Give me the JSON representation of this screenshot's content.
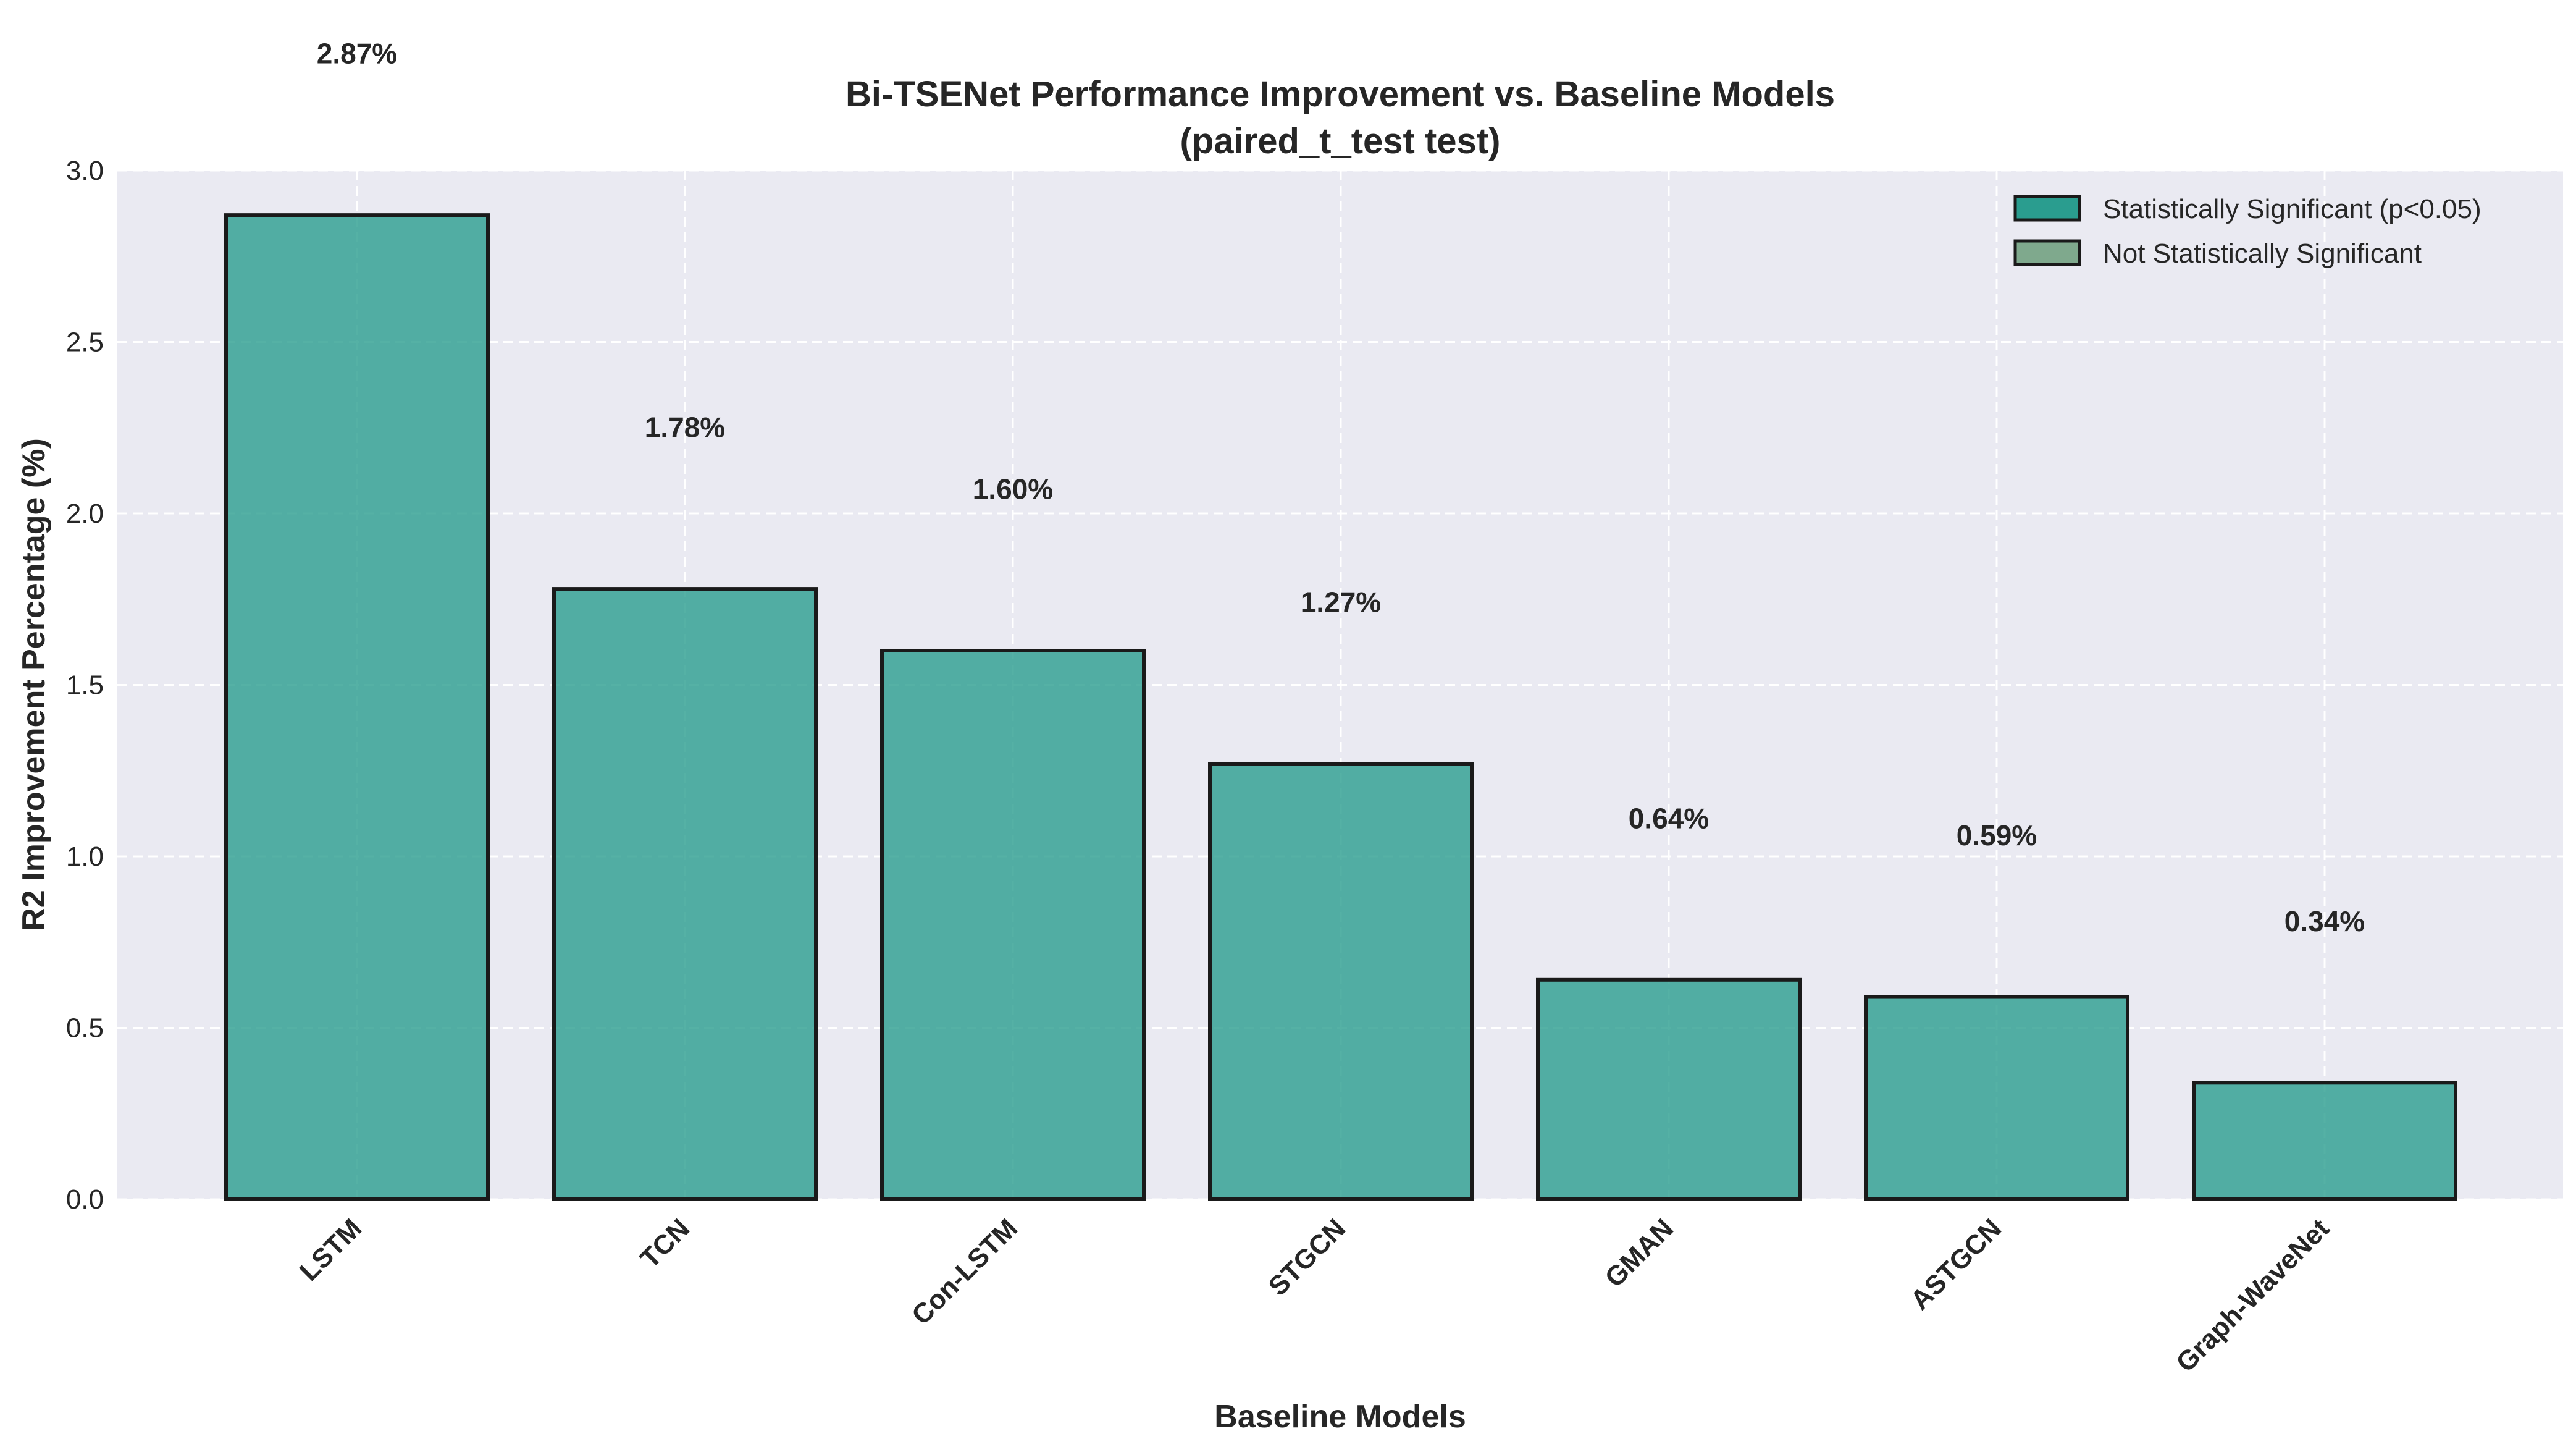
{
  "chart_data": {
    "type": "bar",
    "title": "Bi-TSENet Performance Improvement vs. Baseline Models",
    "subtitle": "(paired_t_test test)",
    "xlabel": "Baseline Models",
    "ylabel": "R2 Improvement Percentage (%)",
    "categories": [
      "LSTM",
      "TCN",
      "Con-LSTM",
      "STGCN",
      "GMAN",
      "ASTGCN",
      "Graph-WaveNet"
    ],
    "values": [
      2.87,
      1.78,
      1.6,
      1.27,
      0.64,
      0.59,
      0.34
    ],
    "value_labels": [
      "2.87%",
      "1.78%",
      "1.60%",
      "1.27%",
      "0.64%",
      "0.59%",
      "0.34%"
    ],
    "significant": [
      true,
      true,
      true,
      true,
      true,
      true,
      true
    ],
    "ylim": [
      0,
      3.0
    ],
    "yticks": [
      0.0,
      0.5,
      1.0,
      1.5,
      2.0,
      2.5,
      3.0
    ],
    "ytick_labels": [
      "0.0",
      "0.5",
      "1.0",
      "1.5",
      "2.0",
      "2.5",
      "3.0"
    ],
    "grid": true,
    "legend": {
      "position": "top-right",
      "entries": [
        {
          "label": "Statistically Significant (p<0.05)",
          "color": "#2a9d8f"
        },
        {
          "label": "Not Statistically Significant",
          "color": "#7fa98d"
        }
      ]
    },
    "colors": {
      "significant": "#2a9d8f",
      "not_significant": "#7fa98d",
      "plot_background": "#eaeaf2",
      "bar_edge": "#1a1a1a"
    }
  }
}
